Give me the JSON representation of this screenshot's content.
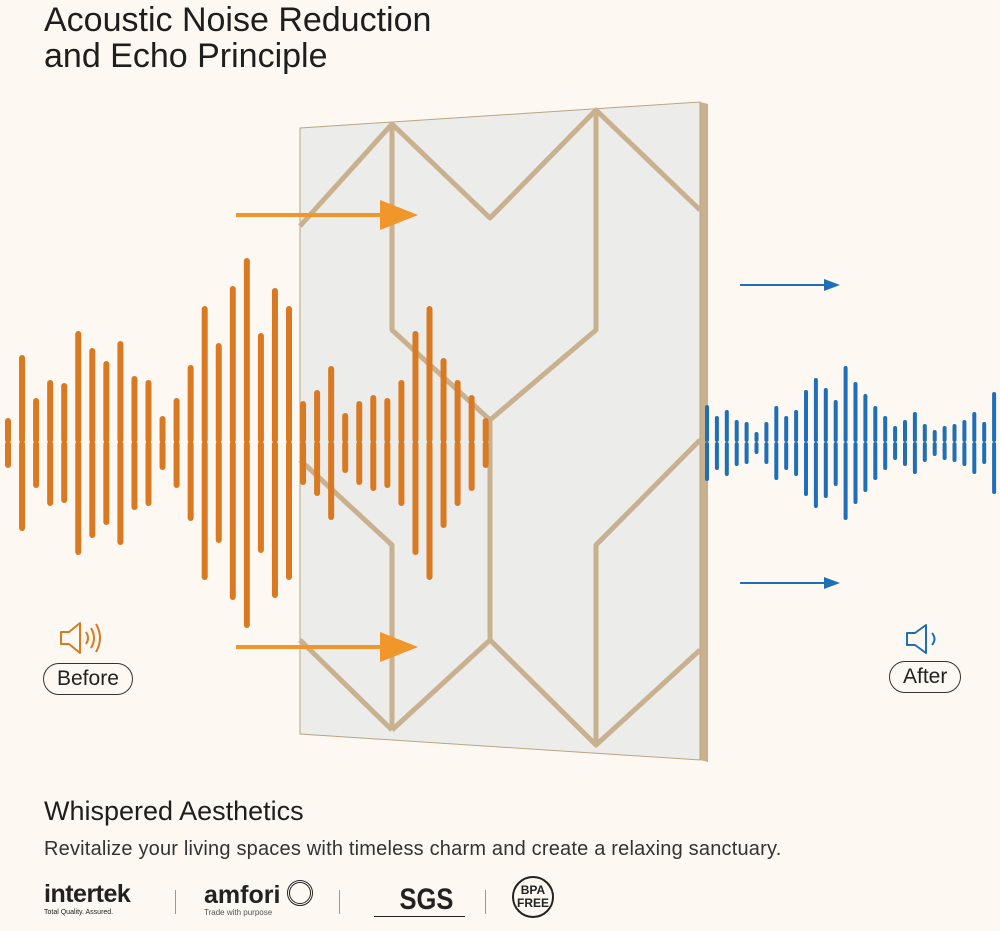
{
  "title": {
    "line1": "Acoustic Noise Reduction",
    "line2": "and Echo Principle"
  },
  "before_label": "Before",
  "after_label": "After",
  "colors": {
    "before": "#d97a22",
    "after": "#1e6fb8",
    "background": "#fdf8f1",
    "panel": "#ececea",
    "panel_groove": "#c9b08f"
  },
  "icons": {
    "before": "speaker-loud-icon",
    "after": "speaker-quiet-icon"
  },
  "section": {
    "heading": "Whispered Aesthetics",
    "text": "Revitalize your living spaces with timeless charm and create a relaxing sanctuary."
  },
  "certifications": [
    {
      "name": "intertek",
      "tagline": "Total Quality. Assured."
    },
    {
      "name": "amfori",
      "tagline": "Trade with purpose"
    },
    {
      "name": "SGS"
    },
    {
      "name": "BPA FREE",
      "line1": "BPA",
      "line2": "FREE"
    }
  ]
}
